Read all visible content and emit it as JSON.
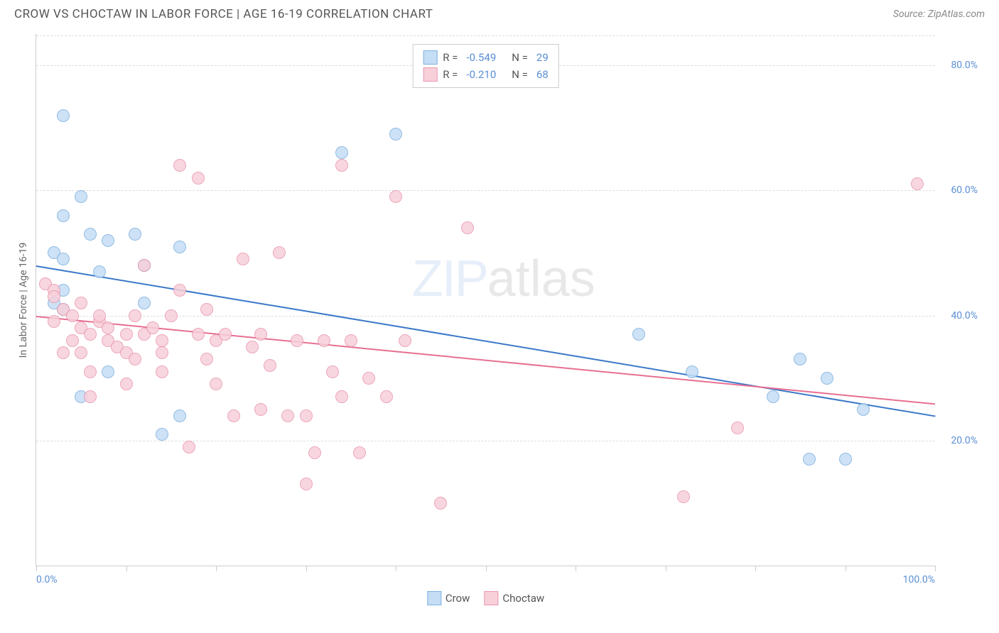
{
  "header": {
    "title": "CROW VS CHOCTAW IN LABOR FORCE | AGE 16-19 CORRELATION CHART",
    "source": "Source: ZipAtlas.com"
  },
  "watermark": {
    "zip": "ZIP",
    "atlas": "atlas"
  },
  "chart": {
    "type": "scatter",
    "ylabel": "In Labor Force | Age 16-19",
    "xlim": [
      0,
      100
    ],
    "ylim": [
      0,
      85
    ],
    "xtick_positions": [
      0,
      10,
      20,
      30,
      40,
      50,
      60,
      70,
      80,
      90,
      100
    ],
    "xtick_labels": {
      "0": "0.0%",
      "100": "100.0%"
    },
    "ytick_positions": [
      20,
      40,
      60,
      80
    ],
    "ytick_labels": [
      "20.0%",
      "40.0%",
      "60.0%",
      "80.0%"
    ],
    "grid_color": "#dddddd",
    "series": [
      {
        "name": "Crow",
        "fill": "#c5ddf5",
        "stroke": "#7fb0e0",
        "line_color": "#3a78c9",
        "marker_radius": 9,
        "r": "-0.549",
        "n": "29",
        "points": [
          [
            3,
            72
          ],
          [
            5,
            59
          ],
          [
            3,
            56
          ],
          [
            6,
            53
          ],
          [
            8,
            52
          ],
          [
            11,
            53
          ],
          [
            12,
            48
          ],
          [
            2,
            50
          ],
          [
            3,
            49
          ],
          [
            16,
            51
          ],
          [
            7,
            47
          ],
          [
            12,
            42
          ],
          [
            2,
            42
          ],
          [
            3,
            44
          ],
          [
            3,
            41
          ],
          [
            8,
            31
          ],
          [
            5,
            27
          ],
          [
            16,
            24
          ],
          [
            14,
            21
          ],
          [
            34,
            66
          ],
          [
            40,
            69
          ],
          [
            67,
            37
          ],
          [
            73,
            31
          ],
          [
            82,
            27
          ],
          [
            85,
            33
          ],
          [
            88,
            30
          ],
          [
            92,
            25
          ],
          [
            86,
            17
          ],
          [
            90,
            17
          ]
        ],
        "trend": {
          "x1": 0,
          "y1": 48,
          "x2": 100,
          "y2": 24
        }
      },
      {
        "name": "Choctaw",
        "fill": "#f7d0da",
        "stroke": "#e997ae",
        "line_color": "#e76f91",
        "marker_radius": 9,
        "r": "-0.210",
        "n": "68",
        "points": [
          [
            1,
            45
          ],
          [
            2,
            44
          ],
          [
            2,
            43
          ],
          [
            3,
            41
          ],
          [
            4,
            40
          ],
          [
            5,
            42
          ],
          [
            5,
            38
          ],
          [
            6,
            37
          ],
          [
            7,
            39
          ],
          [
            8,
            36
          ],
          [
            8,
            38
          ],
          [
            9,
            35
          ],
          [
            10,
            34
          ],
          [
            10,
            37
          ],
          [
            11,
            40
          ],
          [
            12,
            48
          ],
          [
            12,
            37
          ],
          [
            13,
            38
          ],
          [
            14,
            36
          ],
          [
            14,
            34
          ],
          [
            15,
            40
          ],
          [
            16,
            44
          ],
          [
            16,
            64
          ],
          [
            17,
            19
          ],
          [
            18,
            37
          ],
          [
            18,
            62
          ],
          [
            19,
            41
          ],
          [
            20,
            29
          ],
          [
            20,
            36
          ],
          [
            21,
            37
          ],
          [
            22,
            24
          ],
          [
            23,
            49
          ],
          [
            24,
            35
          ],
          [
            25,
            25
          ],
          [
            25,
            37
          ],
          [
            26,
            32
          ],
          [
            27,
            50
          ],
          [
            28,
            24
          ],
          [
            29,
            36
          ],
          [
            30,
            13
          ],
          [
            30,
            24
          ],
          [
            31,
            18
          ],
          [
            32,
            36
          ],
          [
            33,
            31
          ],
          [
            34,
            27
          ],
          [
            34,
            64
          ],
          [
            35,
            36
          ],
          [
            36,
            18
          ],
          [
            37,
            30
          ],
          [
            39,
            27
          ],
          [
            40,
            59
          ],
          [
            41,
            36
          ],
          [
            45,
            10
          ],
          [
            48,
            54
          ],
          [
            6,
            31
          ],
          [
            10,
            29
          ],
          [
            3,
            34
          ],
          [
            7,
            40
          ],
          [
            78,
            22
          ],
          [
            72,
            11
          ],
          [
            98,
            61
          ],
          [
            2,
            39
          ],
          [
            4,
            36
          ],
          [
            5,
            34
          ],
          [
            11,
            33
          ],
          [
            14,
            31
          ],
          [
            19,
            33
          ],
          [
            6,
            27
          ]
        ],
        "trend": {
          "x1": 0,
          "y1": 40,
          "x2": 100,
          "y2": 26
        }
      }
    ],
    "legend_labels": {
      "crow": "Crow",
      "choctaw": "Choctaw"
    },
    "stats_labels": {
      "r": "R =",
      "n": "N ="
    }
  }
}
